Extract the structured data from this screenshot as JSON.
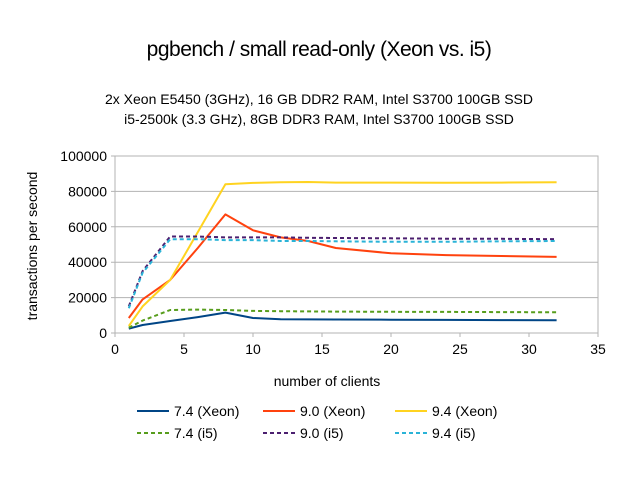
{
  "chart_data": {
    "type": "line",
    "title": "pgbench / small read-only (Xeon vs. i5)",
    "subtitle_lines": [
      "2x Xeon E5450 (3GHz), 16 GB DDR2 RAM, Intel S3700 100GB SSD",
      "i5-2500k (3.3 GHz), 8GB DDR3 RAM, Intel S3700 100GB SSD"
    ],
    "xlabel": "number of clients",
    "ylabel": "transactions per second",
    "xlim": [
      0,
      35
    ],
    "ylim": [
      0,
      100000
    ],
    "xticks": [
      0,
      5,
      10,
      15,
      20,
      25,
      30,
      35
    ],
    "yticks": [
      0,
      20000,
      40000,
      60000,
      80000,
      100000
    ],
    "grid": "horizontal",
    "legend_position": "bottom",
    "x": [
      1,
      2,
      4,
      6,
      8,
      10,
      12,
      14,
      16,
      20,
      24,
      28,
      32
    ],
    "series": [
      {
        "name": "7.4 (Xeon)",
        "color": "#004586",
        "dash": "solid",
        "values": [
          2500,
          4500,
          6800,
          9000,
          11500,
          8500,
          7800,
          7700,
          7600,
          7500,
          7400,
          7300,
          7200
        ]
      },
      {
        "name": "9.0 (Xeon)",
        "color": "#ff420e",
        "dash": "solid",
        "values": [
          8500,
          19000,
          30000,
          48000,
          67000,
          58000,
          54000,
          52000,
          48000,
          45000,
          44000,
          43500,
          43000
        ]
      },
      {
        "name": "9.4 (Xeon)",
        "color": "#ffd320",
        "dash": "solid",
        "values": [
          4000,
          15000,
          30000,
          57000,
          84000,
          84800,
          85200,
          85300,
          85000,
          85000,
          84900,
          85000,
          85200
        ]
      },
      {
        "name": "7.4 (i5)",
        "color": "#579d1c",
        "dash": "dashed",
        "values": [
          3000,
          7000,
          13000,
          13200,
          13000,
          12500,
          12300,
          12200,
          12100,
          12000,
          11900,
          11800,
          11700
        ]
      },
      {
        "name": "9.0 (i5)",
        "color": "#4b1f6f",
        "dash": "dashed",
        "values": [
          15000,
          35000,
          54500,
          54500,
          54000,
          54000,
          54000,
          53800,
          53700,
          53500,
          53300,
          53200,
          53000
        ]
      },
      {
        "name": "9.4 (i5)",
        "color": "#2ab3d7",
        "dash": "dashed",
        "values": [
          14000,
          34000,
          53000,
          53000,
          52500,
          52500,
          52000,
          52000,
          51800,
          51500,
          51500,
          51800,
          52000
        ]
      }
    ]
  }
}
